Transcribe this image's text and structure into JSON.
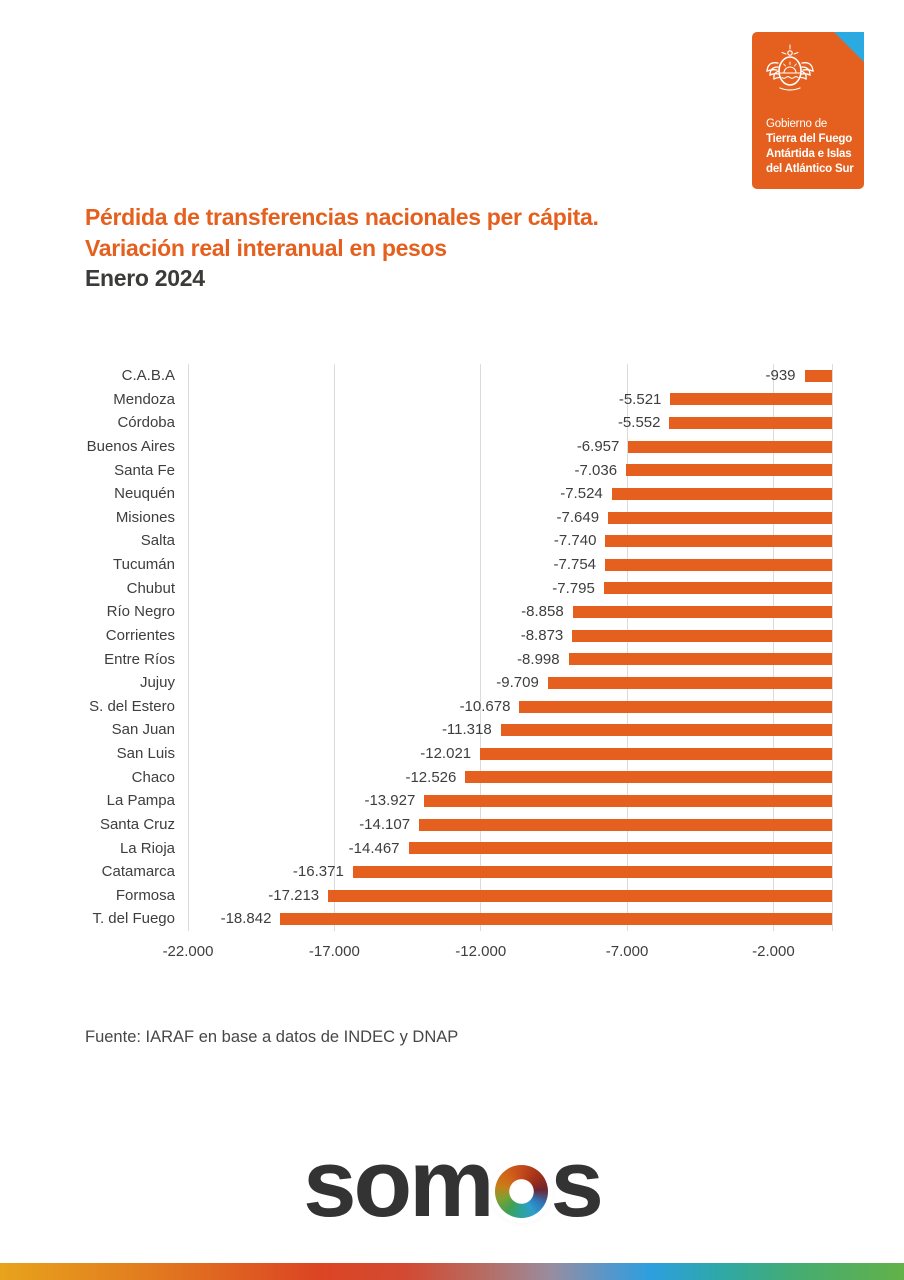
{
  "logo": {
    "org_prefix": "Gobierno de",
    "org_lines": [
      "Tierra del Fuego",
      "Antártida e Islas",
      "del Atlántico Sur"
    ],
    "bg_color": "#E5601E",
    "fold_color": "#2BA9E1"
  },
  "title": {
    "line1": "Pérdida de transferencias nacionales per cápita.",
    "line2": "Variación real interanual en pesos",
    "line3": "Enero 2024",
    "accent_color": "#E5601E",
    "dark_color": "#3B3B3A"
  },
  "chart_data": {
    "type": "bar",
    "orientation": "horizontal",
    "title": "Pérdida de transferencias nacionales per cápita. Variación real interanual en pesos — Enero 2024",
    "xlabel": "",
    "ylabel": "",
    "bar_color": "#E5601E",
    "grid": true,
    "gridline_color": "#dbdbdb",
    "xlim": [
      -22000,
      0
    ],
    "x_ticks": [
      "-22.000",
      "-17.000",
      "-12.000",
      "-7.000",
      "-2.000"
    ],
    "x_tick_values": [
      -22000,
      -17000,
      -12000,
      -7000,
      -2000
    ],
    "grid_values": [
      -22000,
      -17000,
      -12000,
      -7000,
      -2000,
      0
    ],
    "categories": [
      "C.A.B.A",
      "Mendoza",
      "Córdoba",
      "Buenos Aires",
      "Santa Fe",
      "Neuquén",
      "Misiones",
      "Salta",
      "Tucumán",
      "Chubut",
      "Río Negro",
      "Corrientes",
      "Entre Ríos",
      "Jujuy",
      "S. del Estero",
      "San Juan",
      "San Luis",
      "Chaco",
      "La Pampa",
      "Santa Cruz",
      "La Rioja",
      "Catamarca",
      "Formosa",
      "T. del Fuego"
    ],
    "values": [
      -939,
      -5521,
      -5552,
      -6957,
      -7036,
      -7524,
      -7649,
      -7740,
      -7754,
      -7795,
      -8858,
      -8873,
      -8998,
      -9709,
      -10678,
      -11318,
      -12021,
      -12526,
      -13927,
      -14107,
      -14467,
      -16371,
      -17213,
      -18842
    ],
    "value_labels": [
      "-939",
      "-5.521",
      "-5.552",
      "-6.957",
      "-7.036",
      "-7.524",
      "-7.649",
      "-7.740",
      "-7.754",
      "-7.795",
      "-8.858",
      "-8.873",
      "-8.998",
      "-9.709",
      "-10.678",
      "-11.318",
      "-12.021",
      "-12.526",
      "-13.927",
      "-14.107",
      "-14.467",
      "-16.371",
      "-17.213",
      "-18.842"
    ],
    "legend": null
  },
  "source": {
    "text": "Fuente: IARAF en base a datos de INDEC y DNAP"
  },
  "brand": {
    "text_before_wheel": "som",
    "text_after_wheel": "s",
    "text_color": "#333333",
    "wheel_stops": [
      "#C44A1C 0deg",
      "#9E2F18 50deg",
      "#6E2430 85deg",
      "#2E76B8 120deg",
      "#2D9ECC 150deg",
      "#2FA393 185deg",
      "#3FA054 215deg",
      "#7FA032 250deg",
      "#C87E18 285deg",
      "#D2631A 320deg",
      "#C44A1C 360deg"
    ]
  },
  "footer_stripe": {
    "gradient_stops": [
      "#E8A31C 0%",
      "#E1771F 18%",
      "#DC4523 35%",
      "#D24A33 45%",
      "#B56E66 54%",
      "#988DA0 61%",
      "#5996C9 67%",
      "#2D9FDE 72%",
      "#2FA8A5 80%",
      "#45AC72 88%",
      "#63B148 100%"
    ]
  }
}
